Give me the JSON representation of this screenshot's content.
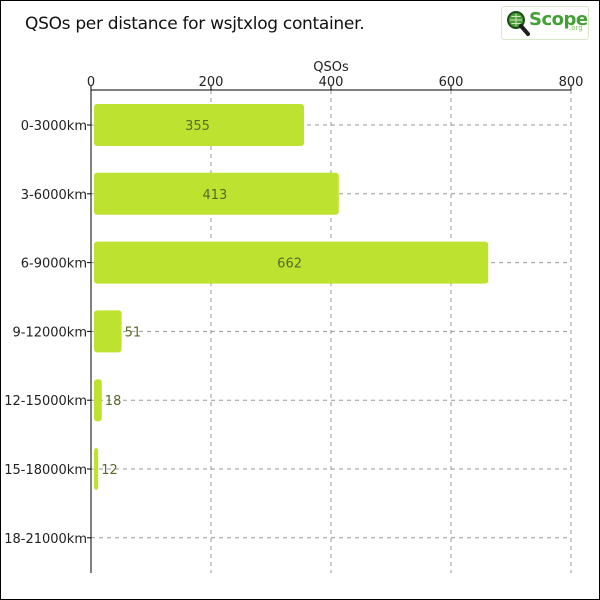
{
  "title": "QSOs per distance for wsjtxlog container.",
  "logo": {
    "main": "Scope",
    "sub": ".org"
  },
  "chart_data": {
    "type": "bar",
    "orientation": "horizontal",
    "title": "QSOs per distance for wsjtxlog container.",
    "xlabel": "QSOs",
    "ylabel": "",
    "xlim": [
      0,
      800
    ],
    "xticks": [
      0,
      200,
      400,
      600,
      800
    ],
    "x_axis_position": "top",
    "grid": true,
    "categories": [
      "0-3000km",
      "3-6000km",
      "6-9000km",
      "9-12000km",
      "12-15000km",
      "15-18000km",
      "18-21000km"
    ],
    "values": [
      355,
      413,
      662,
      51,
      18,
      12,
      0
    ],
    "data_labels": [
      "355",
      "413",
      "662",
      "51",
      "18",
      "12",
      ""
    ],
    "bar_color": "#bde230",
    "label_color": "#5a6a2a"
  }
}
